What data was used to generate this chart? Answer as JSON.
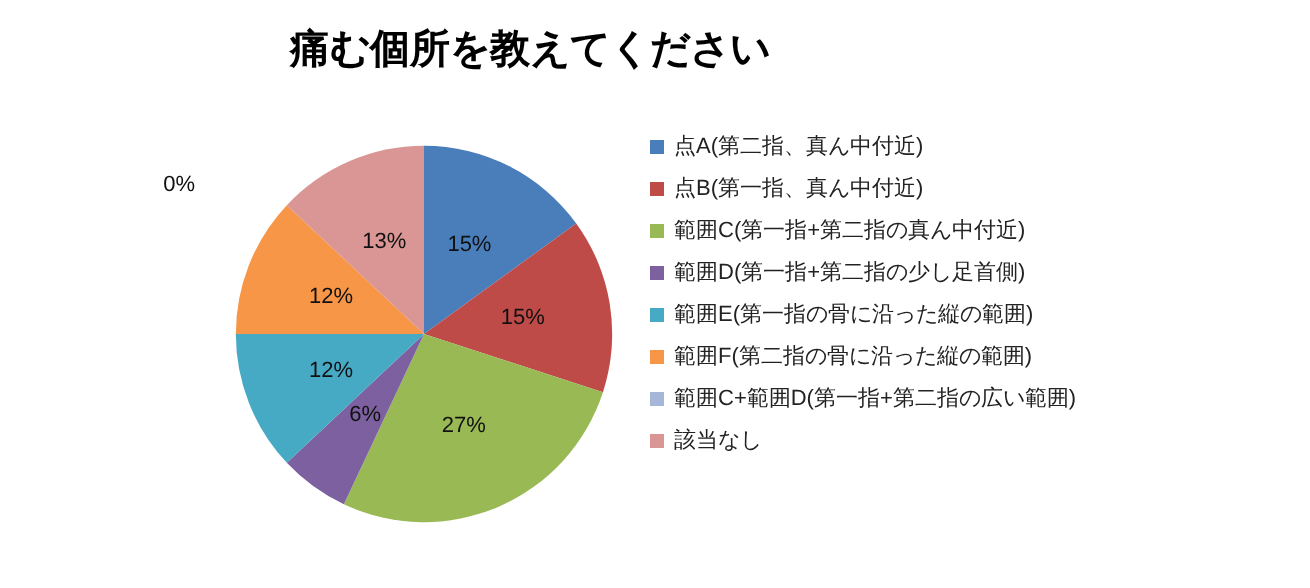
{
  "chart_data": {
    "type": "pie",
    "title": "痛む個所を教えてください",
    "categories": [
      "点A(第二指、真ん中付近)",
      "点B(第一指、真ん中付近)",
      "範囲C(第一指+第二指の真ん中付近)",
      "範囲D(第一指+第二指の少し足首側)",
      "範囲E(第一指の骨に沿った縦の範囲)",
      "範囲F(第二指の骨に沿った縦の範囲)",
      "範囲C+範囲D(第一指+第二指の広い範囲)",
      "該当なし"
    ],
    "values": [
      15,
      15,
      27,
      6,
      12,
      12,
      0,
      13
    ],
    "colors": [
      "#4a7ebb",
      "#be4b48",
      "#98b954",
      "#7d60a0",
      "#46aac5",
      "#f79646",
      "#a5b6d8",
      "#d99694"
    ],
    "value_labels": [
      "15%",
      "15%",
      "27%",
      "6%",
      "12%",
      "12%",
      "0%",
      "13%"
    ],
    "legend": "right"
  }
}
